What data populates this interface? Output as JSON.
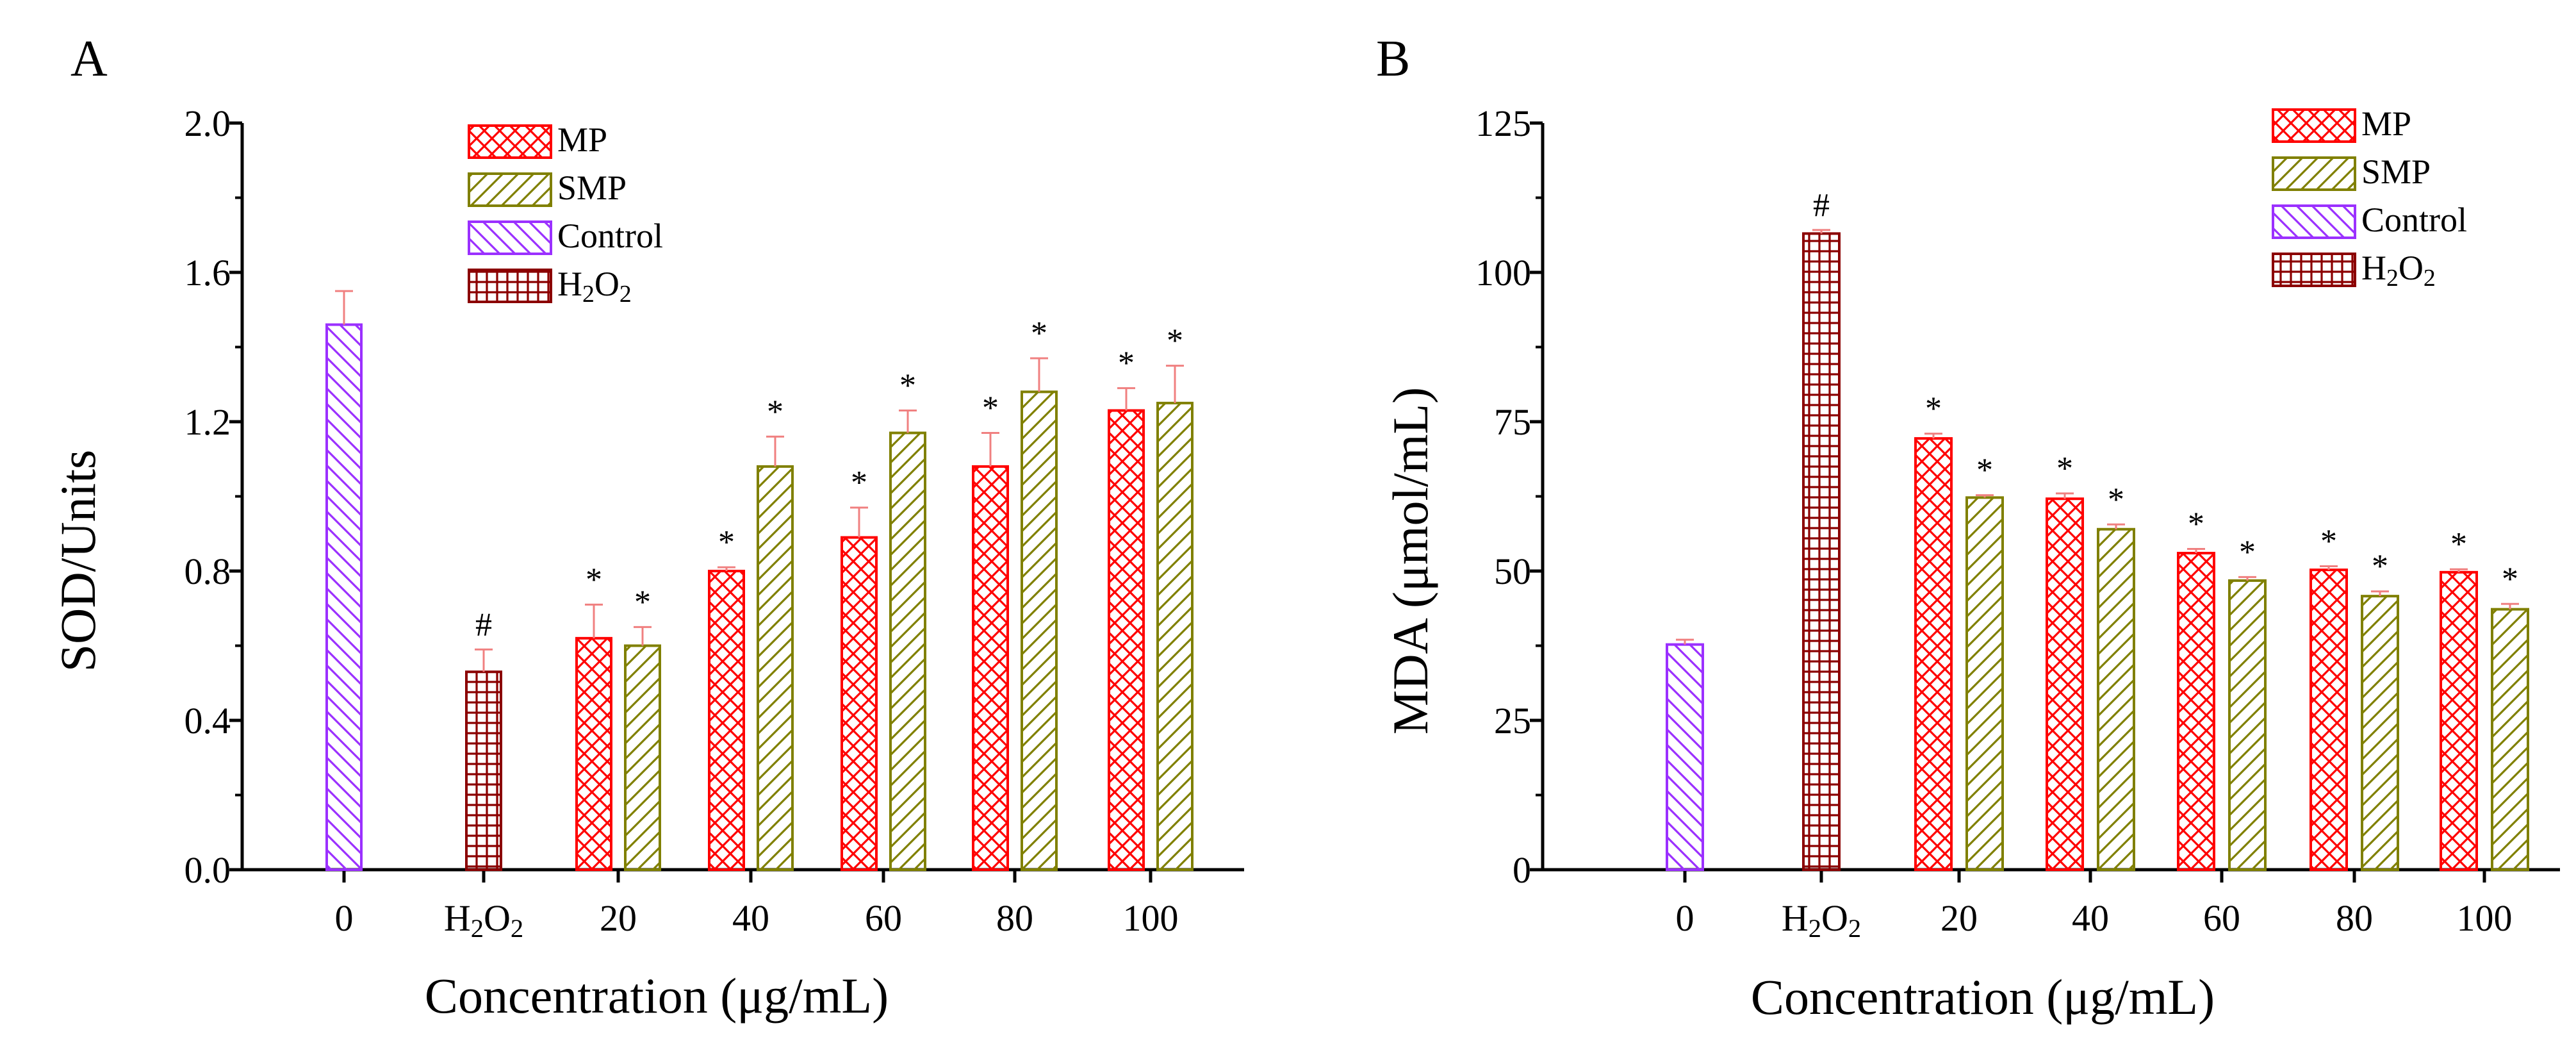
{
  "colors": {
    "mp": "#ff0000",
    "smp": "#808000",
    "control": "#9b30ff",
    "h2o2": "#8b0000",
    "error_bar": "#f08080"
  },
  "chart_data": [
    {
      "panel": "A",
      "type": "bar",
      "xlabel": "Concentration (μg/mL)",
      "ylabel": "SOD/Units",
      "ylim": [
        0,
        2.0
      ],
      "yticks": [
        "0.0",
        "0.4",
        "0.8",
        "1.2",
        "1.6",
        "2.0"
      ],
      "categories": [
        {
          "label": "0"
        },
        {
          "label": "H",
          "sub1": "2",
          "mid": "O",
          "sub2": "2"
        },
        {
          "label": "20"
        },
        {
          "label": "40"
        },
        {
          "label": "60"
        },
        {
          "label": "80"
        },
        {
          "label": "100"
        }
      ],
      "legend": [
        {
          "key": "mp",
          "label": "MP"
        },
        {
          "key": "smp",
          "label": "SMP"
        },
        {
          "key": "control",
          "label": "Control"
        },
        {
          "key": "h2o2",
          "label": "H",
          "sub1": "2",
          "mid": "O",
          "sub2": "2"
        }
      ],
      "series": [
        {
          "name": "Control",
          "key": "control",
          "points": [
            {
              "cat": 0,
              "value": 1.46,
              "err": 0.09,
              "mark": ""
            }
          ]
        },
        {
          "name": "H2O2",
          "key": "h2o2",
          "points": [
            {
              "cat": 1,
              "value": 0.53,
              "err": 0.06,
              "mark": "#"
            }
          ]
        },
        {
          "name": "MP",
          "key": "mp",
          "points": [
            {
              "cat": 2,
              "value": 0.62,
              "err": 0.09,
              "mark": "*"
            },
            {
              "cat": 3,
              "value": 0.8,
              "err": 0.01,
              "mark": "*"
            },
            {
              "cat": 4,
              "value": 0.89,
              "err": 0.08,
              "mark": "*"
            },
            {
              "cat": 5,
              "value": 1.08,
              "err": 0.09,
              "mark": "*"
            },
            {
              "cat": 6,
              "value": 1.23,
              "err": 0.06,
              "mark": "*"
            }
          ]
        },
        {
          "name": "SMP",
          "key": "smp",
          "points": [
            {
              "cat": 2,
              "value": 0.6,
              "err": 0.05,
              "mark": "*"
            },
            {
              "cat": 3,
              "value": 1.08,
              "err": 0.08,
              "mark": "*"
            },
            {
              "cat": 4,
              "value": 1.17,
              "err": 0.06,
              "mark": "*"
            },
            {
              "cat": 5,
              "value": 1.28,
              "err": 0.09,
              "mark": "*"
            },
            {
              "cat": 6,
              "value": 1.25,
              "err": 0.1,
              "mark": "*"
            }
          ]
        }
      ]
    },
    {
      "panel": "B",
      "type": "bar",
      "xlabel": "Concentration (μg/mL)",
      "ylabel": "MDA (μmol/mL)",
      "ylim": [
        0,
        125
      ],
      "yticks": [
        "0",
        "25",
        "50",
        "75",
        "100",
        "125"
      ],
      "categories": [
        {
          "label": "0"
        },
        {
          "label": "H",
          "sub1": "2",
          "mid": "O",
          "sub2": "2"
        },
        {
          "label": "20"
        },
        {
          "label": "40"
        },
        {
          "label": "60"
        },
        {
          "label": "80"
        },
        {
          "label": "100"
        }
      ],
      "legend": [
        {
          "key": "mp",
          "label": "MP"
        },
        {
          "key": "smp",
          "label": "SMP"
        },
        {
          "key": "control",
          "label": "Control"
        },
        {
          "key": "h2o2",
          "label": "H",
          "sub1": "2",
          "mid": "O",
          "sub2": "2"
        }
      ],
      "series": [
        {
          "name": "Control",
          "key": "control",
          "points": [
            {
              "cat": 0,
              "value": 37.7,
              "err": 0.8,
              "mark": ""
            }
          ]
        },
        {
          "name": "H2O2",
          "key": "h2o2",
          "points": [
            {
              "cat": 1,
              "value": 106.5,
              "err": 0.6,
              "mark": "#"
            }
          ]
        },
        {
          "name": "MP",
          "key": "mp",
          "points": [
            {
              "cat": 2,
              "value": 72.2,
              "err": 0.8,
              "mark": "*"
            },
            {
              "cat": 3,
              "value": 62.1,
              "err": 0.9,
              "mark": "*"
            },
            {
              "cat": 4,
              "value": 53.0,
              "err": 0.7,
              "mark": "*"
            },
            {
              "cat": 5,
              "value": 50.2,
              "err": 0.6,
              "mark": "*"
            },
            {
              "cat": 6,
              "value": 49.8,
              "err": 0.5,
              "mark": "*"
            }
          ]
        },
        {
          "name": "SMP",
          "key": "smp",
          "points": [
            {
              "cat": 2,
              "value": 62.3,
              "err": 0.4,
              "mark": "*"
            },
            {
              "cat": 3,
              "value": 57.0,
              "err": 0.8,
              "mark": "*"
            },
            {
              "cat": 4,
              "value": 48.4,
              "err": 0.6,
              "mark": "*"
            },
            {
              "cat": 5,
              "value": 45.8,
              "err": 0.8,
              "mark": "*"
            },
            {
              "cat": 6,
              "value": 43.6,
              "err": 0.9,
              "mark": "*"
            }
          ]
        }
      ]
    }
  ]
}
